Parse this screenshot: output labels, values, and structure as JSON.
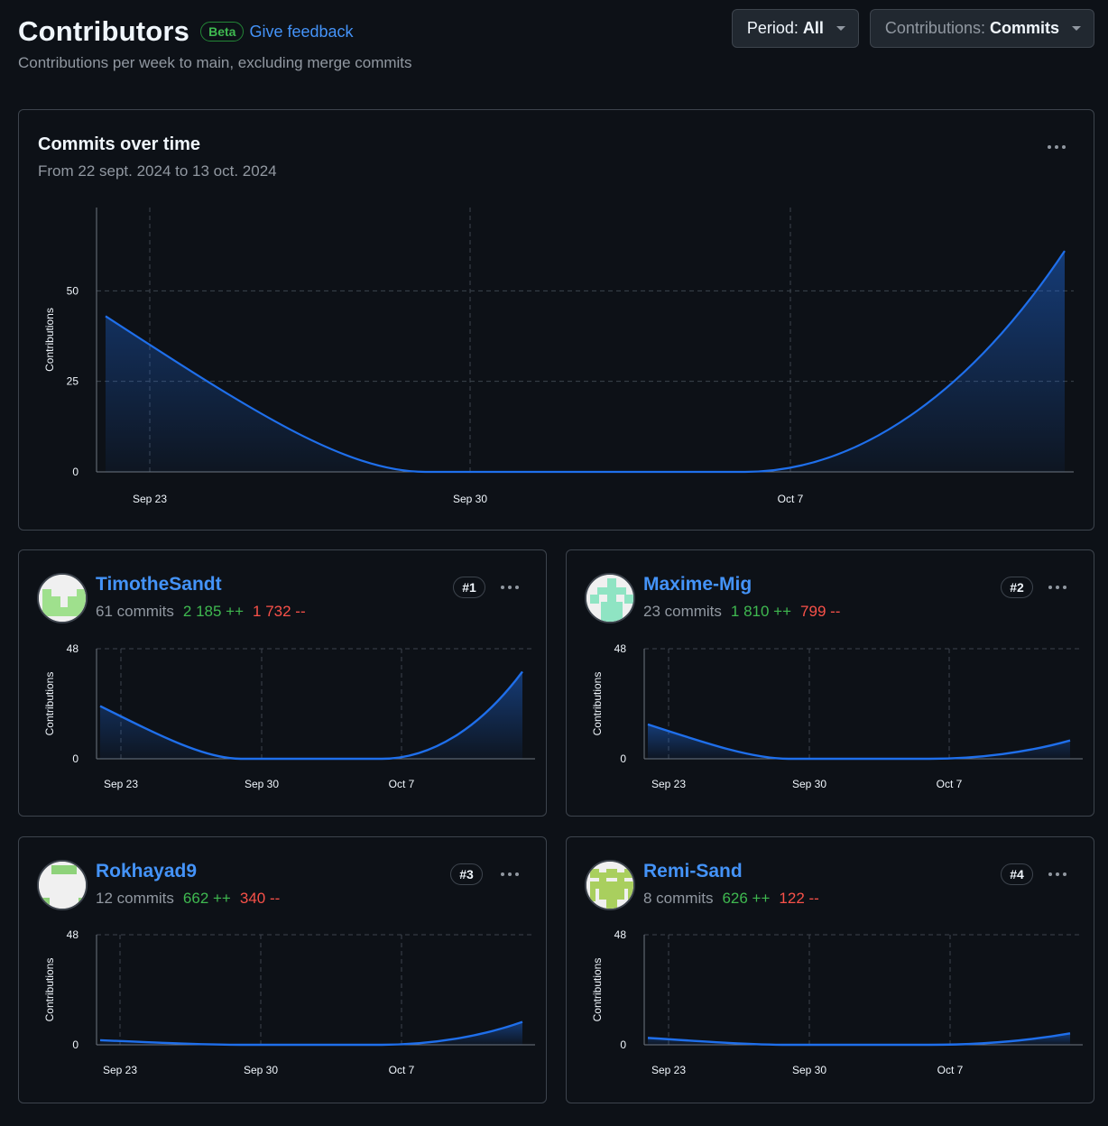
{
  "header": {
    "title": "Contributors",
    "badge": "Beta",
    "feedback": "Give feedback",
    "subtitle": "Contributions per week to main, excluding merge commits",
    "period_label": "Period:",
    "period_value": "All",
    "contrib_label": "Contributions:",
    "contrib_value": "Commits"
  },
  "main_chart": {
    "title": "Commits over time",
    "subtitle": "From 22 sept. 2024 to 13 oct. 2024"
  },
  "chart_data": [
    {
      "type": "area",
      "ylabel": "Contributions",
      "ylim": [
        0,
        73
      ],
      "yticks": [
        "0",
        "25",
        "50"
      ],
      "yticks_values": [
        0,
        25,
        50
      ],
      "xticks": [
        "Sep 23",
        "Sep 30",
        "Oct 7"
      ],
      "x": [
        "Sep 22",
        "Sep 29",
        "Oct 6",
        "Oct 13"
      ],
      "values": [
        43,
        0,
        0,
        61
      ],
      "color": "#1f6feb"
    },
    {
      "type": "area",
      "ylabel": "Contributions",
      "ylim": [
        0,
        48
      ],
      "yticks": [
        "0",
        "48"
      ],
      "yticks_values": [
        0,
        48
      ],
      "xticks": [
        "Sep 23",
        "Sep 30",
        "Oct 7"
      ],
      "x": [
        "Sep 22",
        "Sep 29",
        "Oct 6",
        "Oct 13"
      ],
      "values": [
        23,
        0,
        0,
        38
      ]
    },
    {
      "type": "area",
      "ylabel": "Contributions",
      "ylim": [
        0,
        48
      ],
      "yticks": [
        "0",
        "48"
      ],
      "yticks_values": [
        0,
        48
      ],
      "xticks": [
        "Sep 23",
        "Sep 30",
        "Oct 7"
      ],
      "x": [
        "Sep 22",
        "Sep 29",
        "Oct 6",
        "Oct 13"
      ],
      "values": [
        15,
        0,
        0,
        8
      ]
    },
    {
      "type": "area",
      "ylabel": "Contributions",
      "ylim": [
        0,
        48
      ],
      "yticks": [
        "0",
        "48"
      ],
      "yticks_values": [
        0,
        48
      ],
      "xticks": [
        "Sep 23",
        "Sep 30",
        "Oct 7"
      ],
      "x": [
        "Sep 22",
        "Sep 29",
        "Oct 6",
        "Oct 13"
      ],
      "values": [
        2,
        0,
        0,
        10
      ]
    },
    {
      "type": "area",
      "ylabel": "Contributions",
      "ylim": [
        0,
        48
      ],
      "yticks": [
        "0",
        "48"
      ],
      "yticks_values": [
        0,
        48
      ],
      "xticks": [
        "Sep 23",
        "Sep 30",
        "Oct 7"
      ],
      "x": [
        "Sep 22",
        "Sep 29",
        "Oct 6",
        "Oct 13"
      ],
      "values": [
        3,
        0,
        0,
        5
      ]
    }
  ],
  "contributors": [
    {
      "name": "TimotheSandt",
      "commits": "61 commits",
      "additions": "2 185 ++",
      "deletions": "1 732 --",
      "rank": "#1",
      "avatar_color": "#9fe08d"
    },
    {
      "name": "Maxime-Mig",
      "commits": "23 commits",
      "additions": "1 810 ++",
      "deletions": "799 --",
      "rank": "#2",
      "avatar_color": "#8fe4c3"
    },
    {
      "name": "Rokhayad9",
      "commits": "12 commits",
      "additions": "662 ++",
      "deletions": "340 --",
      "rank": "#3",
      "avatar_color": "#8ed27a"
    },
    {
      "name": "Remi-Sand",
      "commits": "8 commits",
      "additions": "626 ++",
      "deletions": "122 --",
      "rank": "#4",
      "avatar_color": "#a9cf5e"
    }
  ]
}
